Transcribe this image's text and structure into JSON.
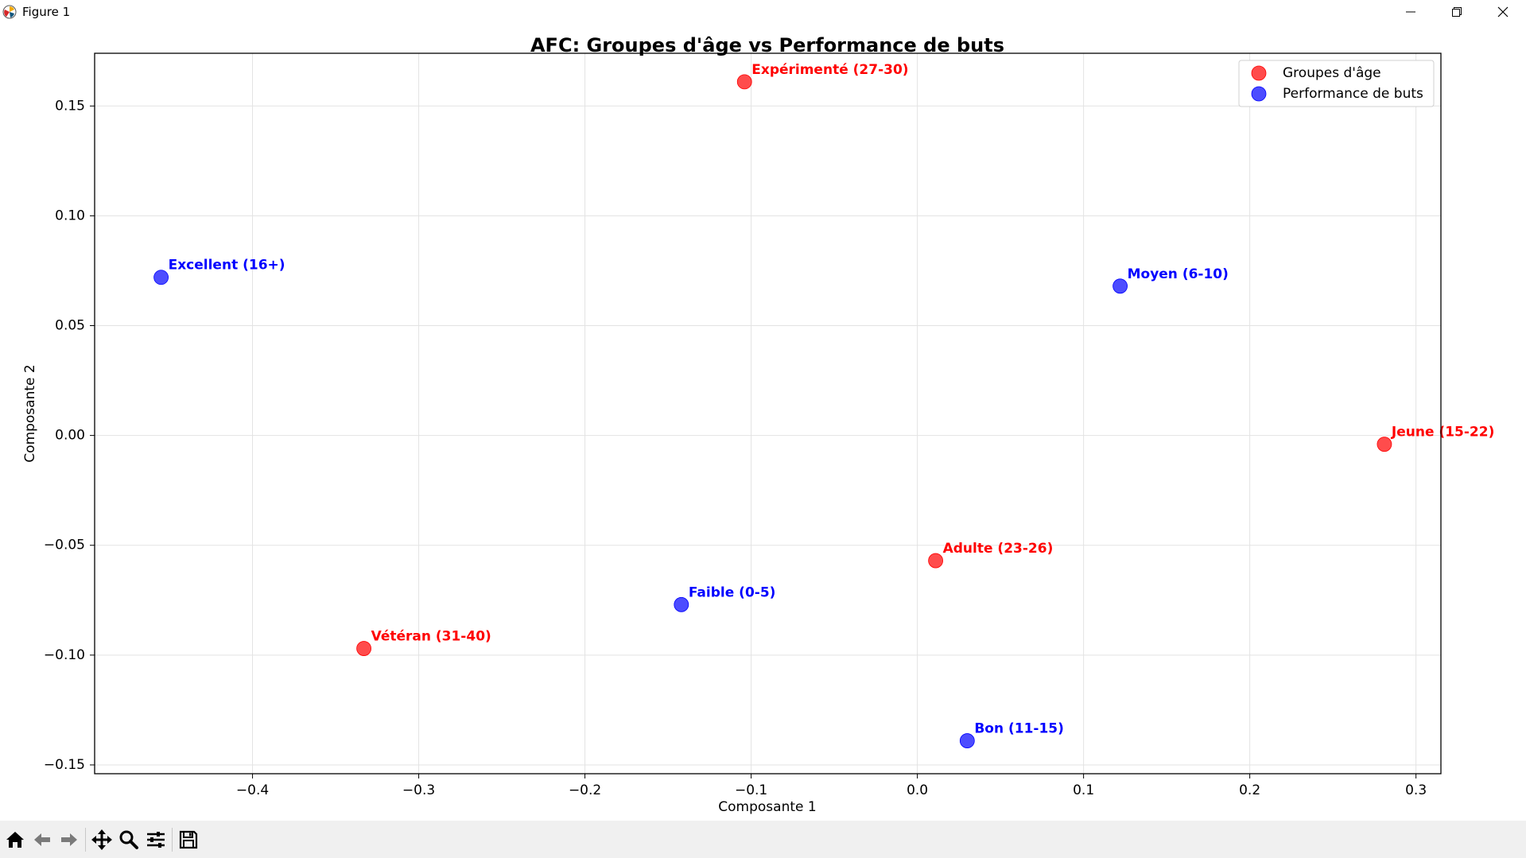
{
  "window": {
    "title": "Figure 1",
    "icons": {
      "minimize": "minimize-icon",
      "maximize": "restore-icon",
      "close": "close-icon"
    }
  },
  "toolbar": {
    "buttons": [
      "home-icon",
      "back-arrow-icon",
      "forward-arrow-icon",
      "pan-icon",
      "zoom-icon",
      "configure-subplots-icon",
      "save-icon"
    ]
  },
  "chart_data": {
    "type": "scatter",
    "title": "AFC: Groupes d'âge vs Performance de buts",
    "xlabel": "Composante 1",
    "ylabel": "Composante 2",
    "xlim": [
      -0.495,
      0.315
    ],
    "ylim": [
      -0.154,
      0.174
    ],
    "xticks": [
      -0.4,
      -0.3,
      -0.2,
      -0.1,
      0.0,
      0.1,
      0.2,
      0.3
    ],
    "xtick_labels": [
      "−0.4",
      "−0.3",
      "−0.2",
      "−0.1",
      "0.0",
      "0.1",
      "0.2",
      "0.3"
    ],
    "yticks": [
      -0.15,
      -0.1,
      -0.05,
      0.0,
      0.05,
      0.1,
      0.15
    ],
    "ytick_labels": [
      "−0.15",
      "−0.10",
      "−0.05",
      "0.00",
      "0.05",
      "0.10",
      "0.15"
    ],
    "grid": true,
    "legend": "top-right",
    "series": [
      {
        "name": "Groupes d'âge",
        "color": "#ff0000",
        "points": [
          {
            "x": -0.104,
            "y": 0.161,
            "label": "Expérimenté (27-30)"
          },
          {
            "x": 0.281,
            "y": -0.004,
            "label": "Jeune (15-22)"
          },
          {
            "x": 0.011,
            "y": -0.057,
            "label": "Adulte (23-26)"
          },
          {
            "x": -0.333,
            "y": -0.097,
            "label": "Vétéran (31-40)"
          }
        ]
      },
      {
        "name": "Performance de buts",
        "color": "#0000ff",
        "points": [
          {
            "x": -0.455,
            "y": 0.072,
            "label": "Excellent (16+)"
          },
          {
            "x": 0.122,
            "y": 0.068,
            "label": "Moyen (6-10)"
          },
          {
            "x": -0.142,
            "y": -0.077,
            "label": "Faible (0-5)"
          },
          {
            "x": 0.03,
            "y": -0.139,
            "label": "Bon (11-15)"
          }
        ]
      }
    ]
  }
}
